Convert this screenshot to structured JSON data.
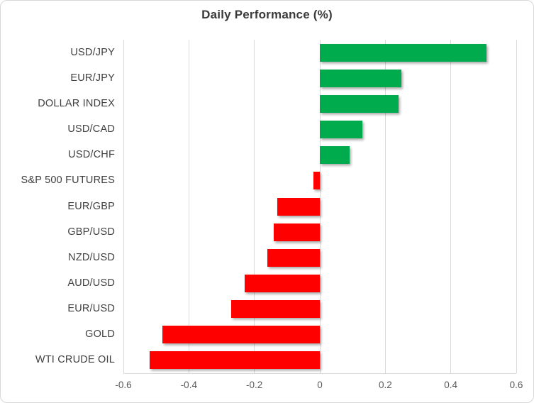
{
  "chart_data": {
    "type": "bar",
    "orientation": "horizontal",
    "title": "Daily Performance (%)",
    "categories": [
      "USD/JPY",
      "EUR/JPY",
      "DOLLAR INDEX",
      "USD/CAD",
      "USD/CHF",
      "S&P 500 FUTURES",
      "EUR/GBP",
      "GBP/USD",
      "NZD/USD",
      "AUD/USD",
      "EUR/USD",
      "GOLD",
      "WTI CRUDE OIL"
    ],
    "values": [
      0.51,
      0.25,
      0.24,
      0.13,
      0.09,
      -0.02,
      -0.13,
      -0.14,
      -0.16,
      -0.23,
      -0.27,
      -0.48,
      -0.52
    ],
    "xlabel": "",
    "ylabel": "",
    "xlim": [
      -0.6,
      0.6
    ],
    "xticks": [
      -0.6,
      -0.4,
      -0.2,
      0,
      0.2,
      0.4,
      0.6
    ],
    "xtick_labels": [
      "-0.6",
      "-0.4",
      "-0.2",
      "0",
      "0.2",
      "0.4",
      "0.6"
    ],
    "grid": true,
    "legend": false,
    "colors": {
      "positive": "#00AB4E",
      "negative": "#FF0000",
      "gridline": "#D9D9D9",
      "title_text": "#3A3A3A",
      "category_text": "#404040",
      "tick_text": "#595959",
      "frame_border": "#D8D8D8"
    }
  }
}
